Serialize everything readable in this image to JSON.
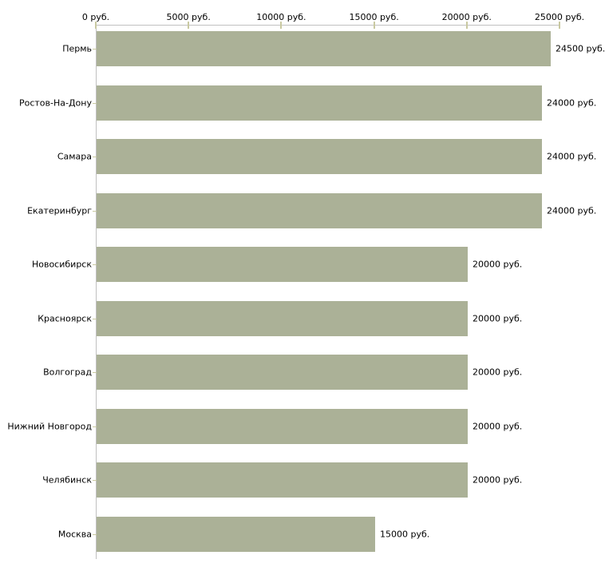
{
  "chart_data": {
    "type": "bar",
    "orientation": "horizontal",
    "title": "",
    "xlabel": "",
    "ylabel": "",
    "unit": "руб.",
    "categories": [
      "Пермь",
      "Ростов-На-Дону",
      "Самара",
      "Екатеринбург",
      "Новосибирск",
      "Красноярск",
      "Волгоград",
      "Нижний Новгород",
      "Челябинск",
      "Москва"
    ],
    "values": [
      24500,
      24000,
      24000,
      24000,
      20000,
      20000,
      20000,
      20000,
      20000,
      15000
    ],
    "value_labels": [
      "24500 руб.",
      "24000 руб.",
      "24000 руб.",
      "24000 руб.",
      "20000 руб.",
      "20000 руб.",
      "20000 руб.",
      "20000 руб.",
      "20000 руб.",
      "15000 руб."
    ],
    "x_tick_values": [
      0,
      5000,
      10000,
      15000,
      20000,
      25000
    ],
    "x_tick_labels": [
      "0 руб.",
      "5000 руб.",
      "10000 руб.",
      "15000 руб.",
      "20000 руб.",
      "25000 руб."
    ],
    "xlim": [
      0,
      25000
    ],
    "axis_position": "top",
    "grid": false,
    "legend": false,
    "colors": {
      "bar": "#abb197",
      "axis_line": "#c0c0c0",
      "tick_mark": "#c9c9a1",
      "text": "#000000",
      "background": "#ffffff"
    }
  }
}
